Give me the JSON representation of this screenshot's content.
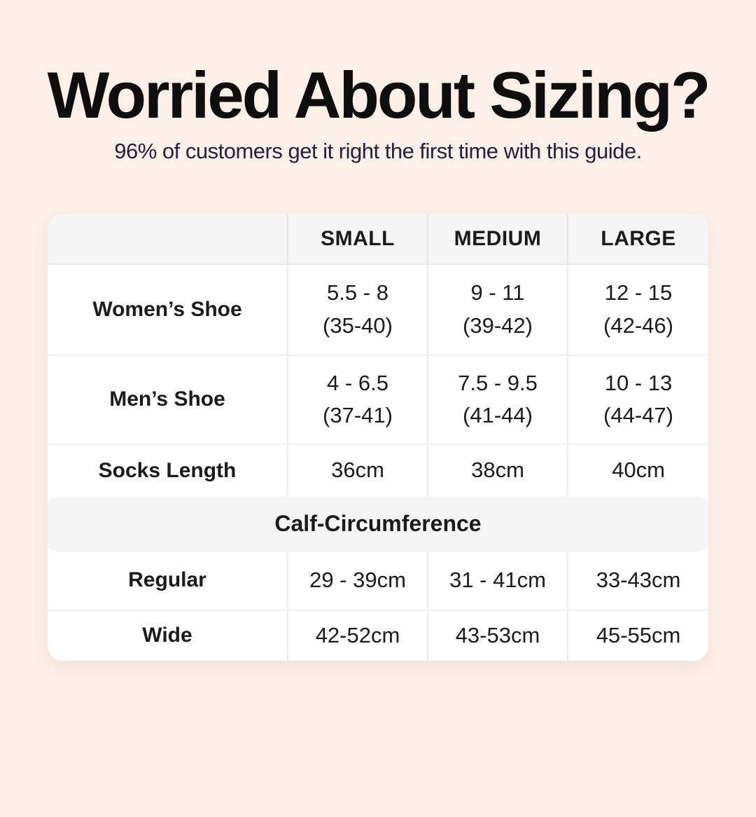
{
  "header": {
    "title": "Worried About Sizing?",
    "subtitle": "96% of customers get it right the first time with this guide."
  },
  "table": {
    "columns": [
      "SMALL",
      "MEDIUM",
      "LARGE"
    ],
    "rows": [
      {
        "label": "Women’s Shoe",
        "cells": [
          {
            "line1": "5.5 - 8",
            "line2": "(35-40)"
          },
          {
            "line1": "9 - 11",
            "line2": "(39-42)"
          },
          {
            "line1": "12 - 15",
            "line2": "(42-46)"
          }
        ]
      },
      {
        "label": "Men’s Shoe",
        "cells": [
          {
            "line1": "4 - 6.5",
            "line2": "(37-41)"
          },
          {
            "line1": "7.5 - 9.5",
            "line2": "(41-44)"
          },
          {
            "line1": "10 - 13",
            "line2": "(44-47)"
          }
        ]
      },
      {
        "label": "Socks Length",
        "cells": [
          {
            "line1": "36cm",
            "line2": ""
          },
          {
            "line1": "38cm",
            "line2": ""
          },
          {
            "line1": "40cm",
            "line2": ""
          }
        ]
      }
    ],
    "section_title": "Calf-Circumference",
    "section_rows": [
      {
        "label": "Regular",
        "cells": [
          "29 - 39cm",
          "31 - 41cm",
          "33-43cm"
        ]
      },
      {
        "label": "Wide",
        "cells": [
          "42-52cm",
          "43-53cm",
          "45-55cm"
        ]
      }
    ]
  },
  "colors": {
    "bg": "#FCF0E9",
    "card": "#FFFFFF",
    "band": "#F5F5F6",
    "line": "#ECECEC",
    "rowline": "#F0F0F0",
    "title": "#0E0E0E",
    "subtitle": "#22223E",
    "text": "#1B1B1B"
  }
}
